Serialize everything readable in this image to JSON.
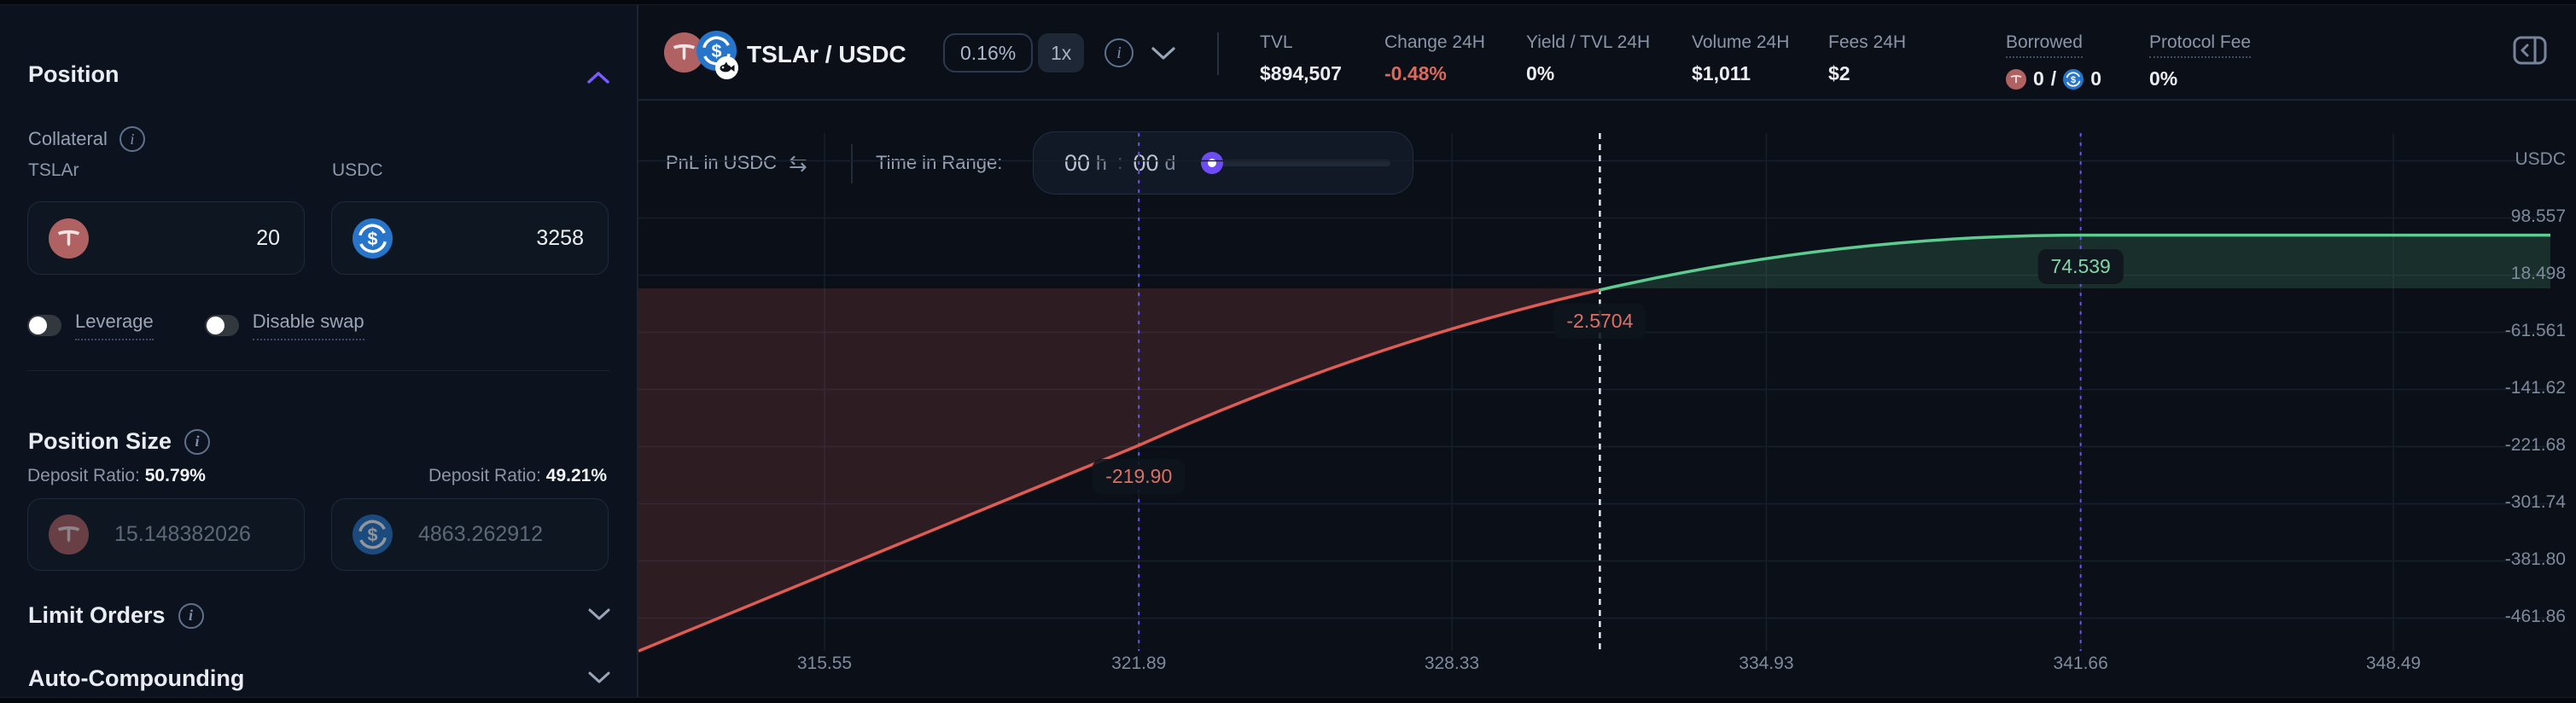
{
  "sidebar": {
    "title": "Position",
    "collateral": {
      "label": "Collateral",
      "tokens": [
        {
          "symbol": "TSLAr",
          "amount": "20"
        },
        {
          "symbol": "USDC",
          "amount": "3258"
        }
      ]
    },
    "toggles": [
      {
        "label": "Leverage",
        "on": false
      },
      {
        "label": "Disable swap",
        "on": false
      }
    ],
    "position_size": {
      "label": "Position Size",
      "rows": [
        {
          "ratio_label": "Deposit Ratio:",
          "ratio": "50.79%",
          "amount": "15.148382026",
          "token": "TSLAr"
        },
        {
          "ratio_label": "Deposit Ratio:",
          "ratio": "49.21%",
          "amount": "4863.262912",
          "token": "USDC"
        }
      ]
    },
    "sections": [
      {
        "label": "Limit Orders"
      },
      {
        "label": "Auto-Compounding"
      }
    ]
  },
  "header": {
    "pair": "TSLAr / USDC",
    "fee_tier": "0.16%",
    "leverage": "1x",
    "stats": [
      {
        "label": "TVL",
        "value": "$894,507"
      },
      {
        "label": "Change 24H",
        "value": "-0.48%"
      },
      {
        "label": "Yield / TVL 24H",
        "value": "0%"
      },
      {
        "label": "Volume 24H",
        "value": "$1,011"
      },
      {
        "label": "Fees 24H",
        "value": "$2"
      },
      {
        "label": "Borrowed",
        "value_tslar": "0",
        "value_sep": "/",
        "value_usdc": "0"
      },
      {
        "label": "Protocol Fee",
        "value": "0%"
      }
    ]
  },
  "controls": {
    "pnl_label": "PnL in USDC",
    "time_label": "Time in Range:",
    "hours": "00",
    "hours_unit": "h",
    "separator": ":",
    "days": "00",
    "days_unit": "d"
  },
  "chart_data": {
    "type": "line",
    "title": "PnL in USDC vs price",
    "ylabel": "USDC",
    "x_axis": {
      "scale": "log",
      "ticks": [
        315.55,
        321.89,
        328.33,
        334.93,
        341.66,
        348.49
      ],
      "labels": [
        "315.55",
        "321.89",
        "328.33",
        "334.93",
        "341.66",
        "348.49"
      ]
    },
    "y_axis": {
      "unit": "USDC",
      "ticks": [
        98.557,
        18.498,
        -61.561,
        -141.62,
        -221.68,
        -301.74,
        -381.8,
        -461.86
      ],
      "labels": [
        "98.557",
        "18.498",
        "-61.561",
        "-141.62",
        "-221.68",
        "-301.74",
        "-381.80",
        "-461.86"
      ]
    },
    "range": {
      "lower": 321.89,
      "upper": 341.66
    },
    "current_price": 331.42,
    "curve": {
      "left_edge_pnl": -508,
      "lower_bound_pnl": -219.9,
      "current_pnl": -2.5704,
      "upper_bound_pnl": 74.539,
      "shape": "linear below range, concave in range, flat above range"
    },
    "markers": [
      {
        "name": "pnl-at-lower-bound",
        "price": 321.89,
        "value": -219.9,
        "label": "-219.90",
        "tone": "negative"
      },
      {
        "name": "pnl-at-current-price",
        "price": 331.42,
        "value": -2.5704,
        "label": "-2.5704",
        "tone": "negative"
      },
      {
        "name": "pnl-at-upper-bound",
        "price": 341.66,
        "value": 74.539,
        "label": "74.539",
        "tone": "positive"
      }
    ],
    "colors": {
      "positive": "#5ecb90",
      "negative": "#e05b54",
      "fill_positive": "rgba(94,203,144,0.17)",
      "fill_negative": "rgba(224,91,84,0.16)",
      "range_line": "#6f4ff2",
      "current_line": "#e3e9f1",
      "grid": "#161f2b"
    }
  }
}
